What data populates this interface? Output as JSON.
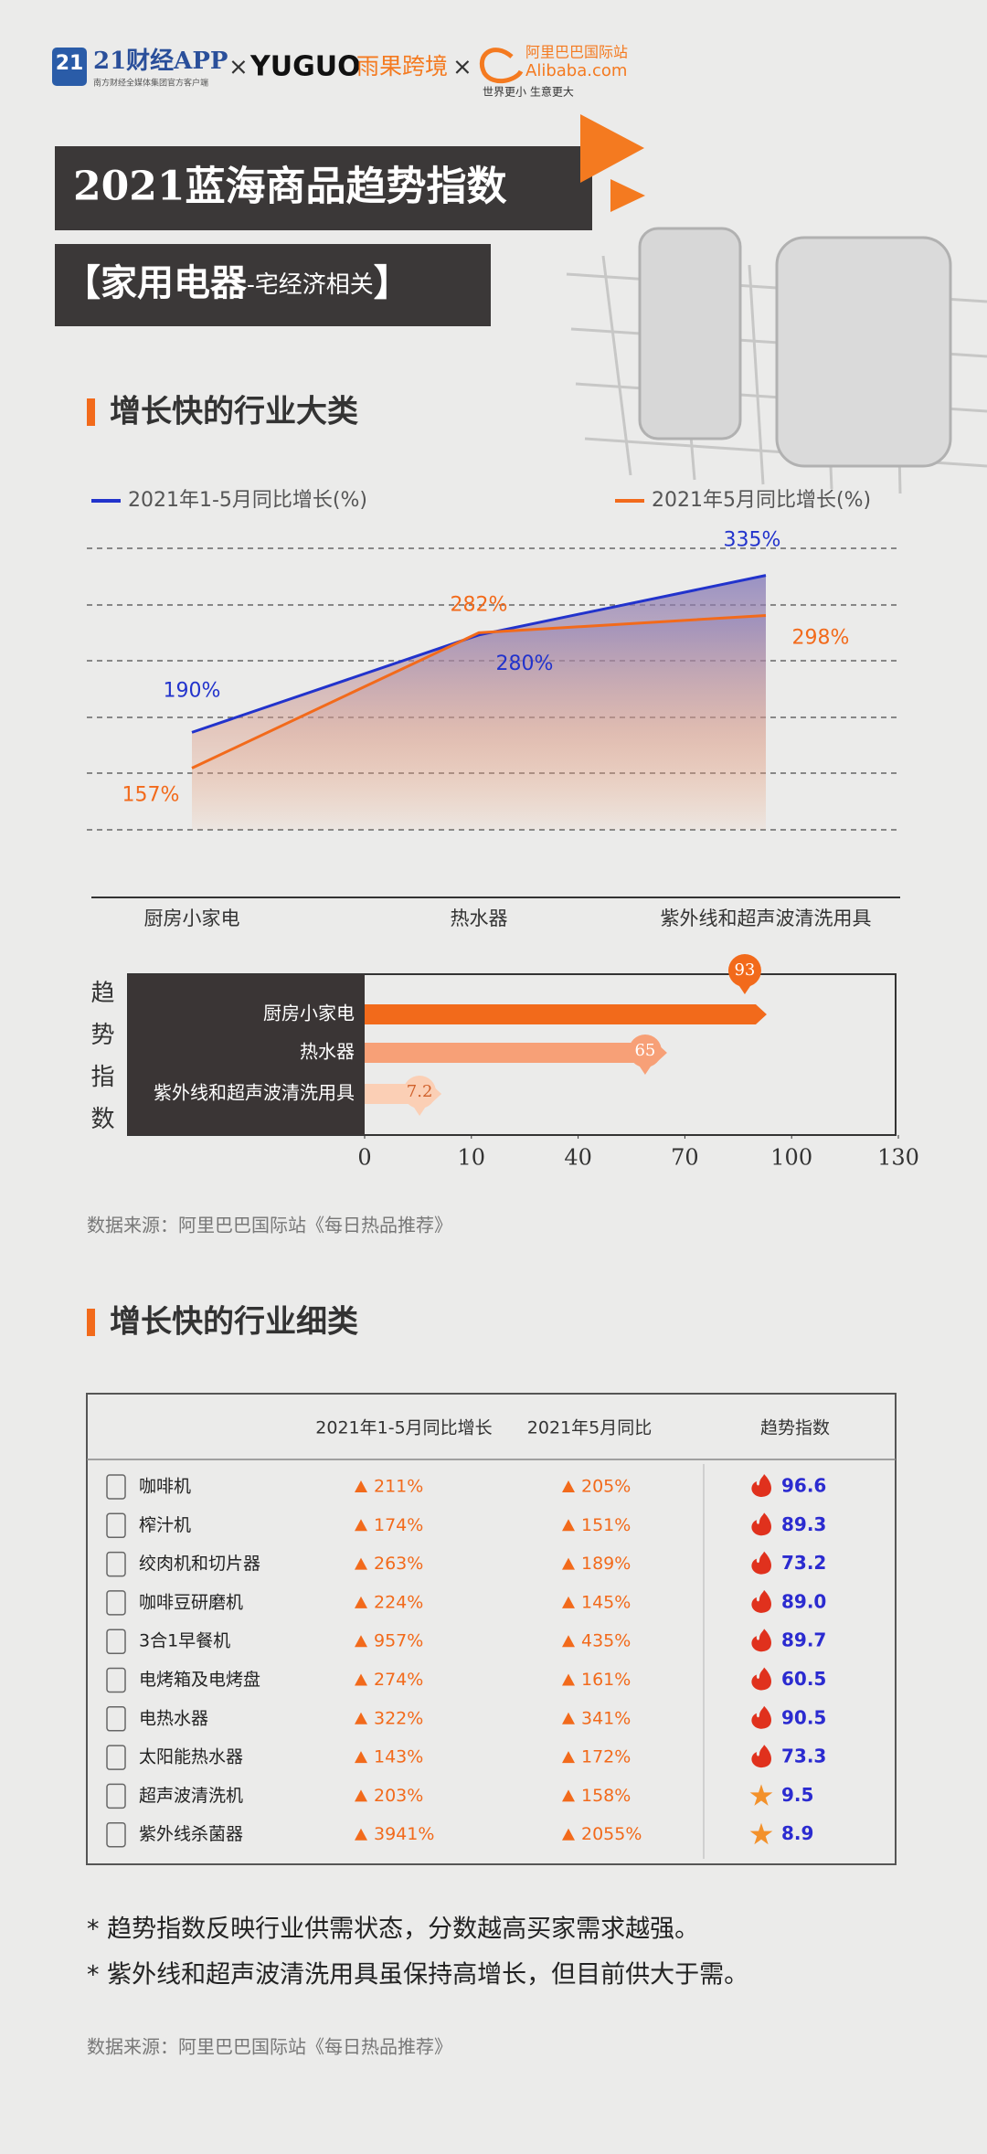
{
  "header": {
    "logo1_badge": "21",
    "logo1_name": "21财经APP",
    "logo1_tagline": "南方财经全媒体集团官方客户端",
    "times": "×",
    "logo2_name": "YUGUO",
    "logo2_cn": "雨果跨境",
    "logo3_cn": "阿里巴巴国际站",
    "logo3_name": "Alibaba.com",
    "logo3_slogan": "世界更小 生意更大",
    "title": "2021蓝海商品趋势指数",
    "subtitle": [
      "【家用电器",
      "-宅经济相关",
      "】"
    ]
  },
  "sections": [
    "增长快的行业大类",
    "增长快的行业细类"
  ],
  "chart_data": [
    {
      "type": "line",
      "categories": [
        "厨房小家电",
        "热水器",
        "紫外线和超声波清洗用具"
      ],
      "series": [
        {
          "name": "2021年1-5月同比增长(%)",
          "color": "#2233cc",
          "values": [
            190,
            280,
            335
          ],
          "value_labels": [
            "190%",
            "280%",
            "335%"
          ]
        },
        {
          "name": "2021年5月同比增长(%)",
          "color": "#f26a1b",
          "values": [
            157,
            282,
            298
          ],
          "value_labels": [
            "157%",
            "282%",
            "298%"
          ]
        }
      ],
      "ylim": [
        100,
        360
      ],
      "area": true,
      "legend": "top"
    },
    {
      "type": "hbar",
      "y_label": "趋势指数",
      "categories": [
        "厨房小家电",
        "热水器",
        "紫外线和超声波清洗用具"
      ],
      "values": [
        93,
        65,
        7.2
      ],
      "colors": [
        "#f26a1b",
        "#f7a077",
        "#fbcfb5"
      ],
      "xlim": [
        0,
        130
      ],
      "xticks": [
        0,
        10,
        40,
        70,
        100,
        130
      ]
    }
  ],
  "sources": [
    "数据来源：阿里巴巴国际站《每日热品推荐》",
    "数据来源：阿里巴巴国际站《每日热品推荐》"
  ],
  "table": {
    "header": [
      "2021年1-5月同比增长",
      "2021年5月同比",
      "趋势指数"
    ],
    "rows": [
      {
        "name": "咖啡机",
        "growth_ytd": "211%",
        "growth_may": "205%",
        "index": "96.6",
        "marker": "fire"
      },
      {
        "name": "榨汁机",
        "growth_ytd": "174%",
        "growth_may": "151%",
        "index": "89.3",
        "marker": "fire"
      },
      {
        "name": "绞肉机和切片器",
        "growth_ytd": "263%",
        "growth_may": "189%",
        "index": "73.2",
        "marker": "fire"
      },
      {
        "name": "咖啡豆研磨机",
        "growth_ytd": "224%",
        "growth_may": "145%",
        "index": "89.0",
        "marker": "fire"
      },
      {
        "name": "3合1早餐机",
        "growth_ytd": "957%",
        "growth_may": "435%",
        "index": "89.7",
        "marker": "fire"
      },
      {
        "name": "电烤箱及电烤盘",
        "growth_ytd": "274%",
        "growth_may": "161%",
        "index": "60.5",
        "marker": "fire"
      },
      {
        "name": "电热水器",
        "growth_ytd": "322%",
        "growth_may": "341%",
        "index": "90.5",
        "marker": "fire"
      },
      {
        "name": "太阳能热水器",
        "growth_ytd": "143%",
        "growth_may": "172%",
        "index": "73.3",
        "marker": "fire"
      },
      {
        "name": "超声波清洗机",
        "growth_ytd": "203%",
        "growth_may": "158%",
        "index": "9.5",
        "marker": "star"
      },
      {
        "name": "紫外线杀菌器",
        "growth_ytd": "3941%",
        "growth_may": "2055%",
        "index": "8.9",
        "marker": "star"
      }
    ]
  },
  "notes": [
    "* 趋势指数反映行业供需状态，分数越高买家需求越强。",
    "* 紫外线和超声波清洗用具虽保持高增长，但目前供大于需。"
  ]
}
